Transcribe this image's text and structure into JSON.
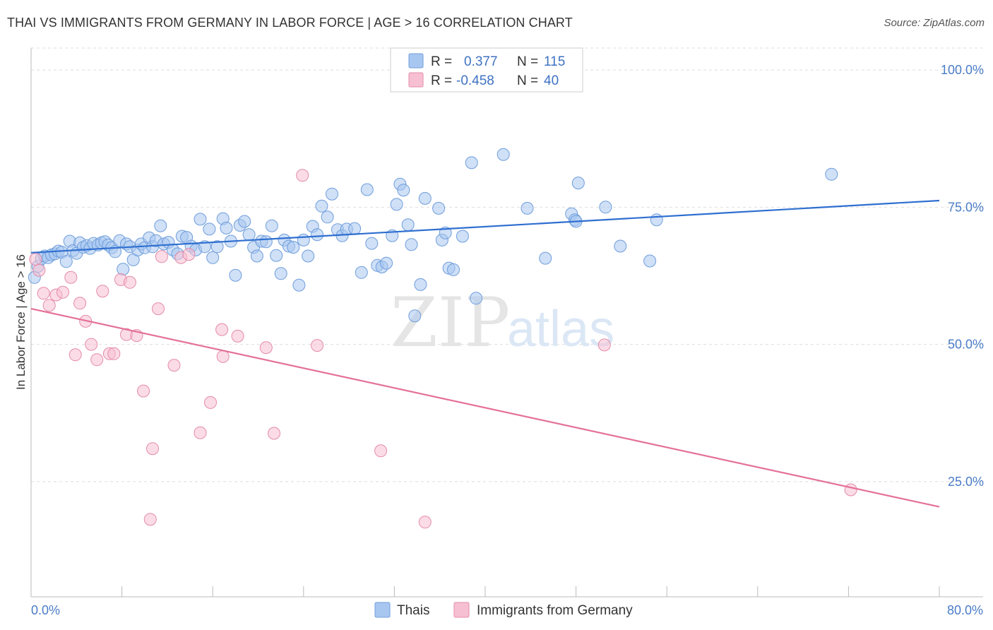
{
  "title": "THAI VS IMMIGRANTS FROM GERMANY IN LABOR FORCE | AGE > 16 CORRELATION CHART",
  "source": "Source: ZipAtlas.com",
  "watermark": {
    "zip": "ZIP",
    "atlas": "atlas"
  },
  "legend": [
    {
      "r_label": "R =",
      "r_value": "0.377",
      "n_label": "N =",
      "n_value": "115",
      "color": "#a8c7f0",
      "stroke": "#6f9ddb"
    },
    {
      "r_label": "R =",
      "r_value": "-0.458",
      "n_label": "N =",
      "n_value": "40",
      "color": "#f7c0d2",
      "stroke": "#e48aa8"
    }
  ],
  "chart_data": {
    "type": "scatter",
    "title": "THAI VS IMMIGRANTS FROM GERMANY IN LABOR FORCE | AGE > 16 CORRELATION CHART",
    "xlabel": "",
    "ylabel": "In Labor Force | Age > 16",
    "xlim": [
      0,
      80
    ],
    "ylim": [
      4,
      104
    ],
    "x_tick_labels": [
      "0.0%",
      "80.0%"
    ],
    "y_ticks": [
      25,
      50,
      75,
      100
    ],
    "y_tick_labels": [
      "25.0%",
      "50.0%",
      "75.0%",
      "100.0%"
    ],
    "grid": true,
    "legend_position": "top-center",
    "series": [
      {
        "name": "Thais",
        "color": "#a8c7f0",
        "stroke": "#6f9ddb",
        "trend": {
          "x": [
            0,
            80
          ],
          "y": [
            66.7,
            76.2
          ],
          "color": "#2f6fd0"
        },
        "points": [
          [
            0.3,
            62.2
          ],
          [
            0.6,
            64.2
          ],
          [
            0.9,
            65.6
          ],
          [
            1.2,
            66.1
          ],
          [
            1.5,
            65.8
          ],
          [
            1.8,
            66.3
          ],
          [
            2.1,
            66.5
          ],
          [
            2.4,
            67.0
          ],
          [
            2.7,
            66.8
          ],
          [
            3.1,
            65.1
          ],
          [
            3.4,
            68.8
          ],
          [
            3.7,
            67.1
          ],
          [
            4.0,
            66.6
          ],
          [
            4.3,
            68.5
          ],
          [
            4.6,
            67.7
          ],
          [
            4.9,
            68.0
          ],
          [
            5.2,
            67.5
          ],
          [
            5.5,
            68.4
          ],
          [
            5.9,
            68.1
          ],
          [
            6.2,
            68.5
          ],
          [
            6.5,
            68.7
          ],
          [
            6.8,
            68.1
          ],
          [
            7.1,
            67.6
          ],
          [
            7.4,
            66.9
          ],
          [
            7.8,
            68.9
          ],
          [
            8.1,
            63.7
          ],
          [
            8.4,
            68.3
          ],
          [
            8.7,
            67.8
          ],
          [
            9.0,
            65.4
          ],
          [
            9.4,
            67.2
          ],
          [
            9.7,
            68.3
          ],
          [
            10.0,
            67.6
          ],
          [
            10.4,
            69.4
          ],
          [
            10.7,
            67.8
          ],
          [
            11.0,
            68.9
          ],
          [
            11.4,
            71.6
          ],
          [
            11.7,
            68.3
          ],
          [
            12.1,
            68.6
          ],
          [
            12.5,
            67.2
          ],
          [
            12.9,
            66.5
          ],
          [
            13.3,
            69.7
          ],
          [
            13.7,
            69.5
          ],
          [
            14.1,
            67.9
          ],
          [
            14.5,
            67.2
          ],
          [
            14.9,
            72.8
          ],
          [
            15.3,
            67.8
          ],
          [
            15.7,
            71.0
          ],
          [
            16.0,
            65.8
          ],
          [
            16.4,
            67.8
          ],
          [
            16.9,
            72.9
          ],
          [
            17.2,
            71.2
          ],
          [
            17.6,
            68.8
          ],
          [
            18.0,
            62.6
          ],
          [
            18.4,
            71.7
          ],
          [
            18.8,
            72.4
          ],
          [
            19.2,
            70.0
          ],
          [
            19.6,
            67.7
          ],
          [
            19.9,
            66.1
          ],
          [
            20.3,
            68.8
          ],
          [
            20.7,
            68.7
          ],
          [
            21.2,
            71.6
          ],
          [
            21.6,
            66.2
          ],
          [
            22.0,
            62.9
          ],
          [
            22.3,
            69.0
          ],
          [
            22.7,
            67.9
          ],
          [
            23.1,
            67.7
          ],
          [
            23.6,
            60.8
          ],
          [
            24.0,
            69.0
          ],
          [
            24.4,
            66.1
          ],
          [
            24.8,
            71.5
          ],
          [
            25.2,
            70.0
          ],
          [
            25.6,
            75.2
          ],
          [
            26.1,
            73.2
          ],
          [
            26.5,
            77.4
          ],
          [
            27.0,
            70.9
          ],
          [
            27.4,
            69.8
          ],
          [
            27.8,
            71.0
          ],
          [
            28.5,
            71.1
          ],
          [
            29.1,
            63.1
          ],
          [
            29.6,
            78.2
          ],
          [
            30.0,
            68.4
          ],
          [
            30.5,
            64.4
          ],
          [
            30.9,
            64.1
          ],
          [
            31.3,
            64.8
          ],
          [
            31.8,
            69.8
          ],
          [
            32.2,
            75.5
          ],
          [
            32.5,
            79.2
          ],
          [
            32.8,
            78.1
          ],
          [
            33.2,
            71.8
          ],
          [
            33.5,
            68.2
          ],
          [
            33.8,
            55.2
          ],
          [
            34.3,
            60.9
          ],
          [
            34.7,
            76.6
          ],
          [
            35.9,
            74.8
          ],
          [
            36.2,
            69.0
          ],
          [
            36.5,
            70.3
          ],
          [
            36.8,
            63.9
          ],
          [
            37.2,
            63.6
          ],
          [
            38.0,
            69.7
          ],
          [
            38.8,
            83.1
          ],
          [
            39.2,
            58.4
          ],
          [
            41.6,
            84.6
          ],
          [
            43.7,
            74.8
          ],
          [
            45.3,
            65.7
          ],
          [
            47.6,
            73.8
          ],
          [
            47.9,
            72.7
          ],
          [
            48.0,
            72.4
          ],
          [
            48.2,
            79.4
          ],
          [
            50.6,
            75.0
          ],
          [
            51.9,
            67.9
          ],
          [
            54.5,
            65.2
          ],
          [
            55.1,
            72.7
          ],
          [
            70.5,
            81.0
          ]
        ]
      },
      {
        "name": "Immigrants from Germany",
        "color": "#f7c0d2",
        "stroke": "#e48aa8",
        "trend": {
          "x": [
            0,
            80
          ],
          "y": [
            56.5,
            20.4
          ],
          "color": "#e4709a"
        },
        "points": [
          [
            0.4,
            65.5
          ],
          [
            0.7,
            63.5
          ],
          [
            1.1,
            59.3
          ],
          [
            1.6,
            57.1
          ],
          [
            2.2,
            59.0
          ],
          [
            2.8,
            59.5
          ],
          [
            3.5,
            62.2
          ],
          [
            3.9,
            48.1
          ],
          [
            4.3,
            57.5
          ],
          [
            4.8,
            54.2
          ],
          [
            5.3,
            50.0
          ],
          [
            5.8,
            47.2
          ],
          [
            6.3,
            59.7
          ],
          [
            6.9,
            48.3
          ],
          [
            7.3,
            48.3
          ],
          [
            7.9,
            61.8
          ],
          [
            8.4,
            51.8
          ],
          [
            8.7,
            61.3
          ],
          [
            9.3,
            51.6
          ],
          [
            9.9,
            41.5
          ],
          [
            10.7,
            31.0
          ],
          [
            11.2,
            56.5
          ],
          [
            11.5,
            66.0
          ],
          [
            10.5,
            18.1
          ],
          [
            12.6,
            46.2
          ],
          [
            13.2,
            65.8
          ],
          [
            13.9,
            66.4
          ],
          [
            14.9,
            33.9
          ],
          [
            15.8,
            39.4
          ],
          [
            16.8,
            52.7
          ],
          [
            16.9,
            47.8
          ],
          [
            18.2,
            51.5
          ],
          [
            20.7,
            49.4
          ],
          [
            21.4,
            33.8
          ],
          [
            23.9,
            80.8
          ],
          [
            25.2,
            49.8
          ],
          [
            30.8,
            30.6
          ],
          [
            34.7,
            17.6
          ],
          [
            50.5,
            49.9
          ],
          [
            72.2,
            23.5
          ]
        ]
      }
    ]
  },
  "bottom_legend": [
    {
      "label": "Thais",
      "color": "#a8c7f0",
      "stroke": "#6f9ddb"
    },
    {
      "label": "Immigrants from Germany",
      "color": "#f7c0d2",
      "stroke": "#e48aa8"
    }
  ]
}
